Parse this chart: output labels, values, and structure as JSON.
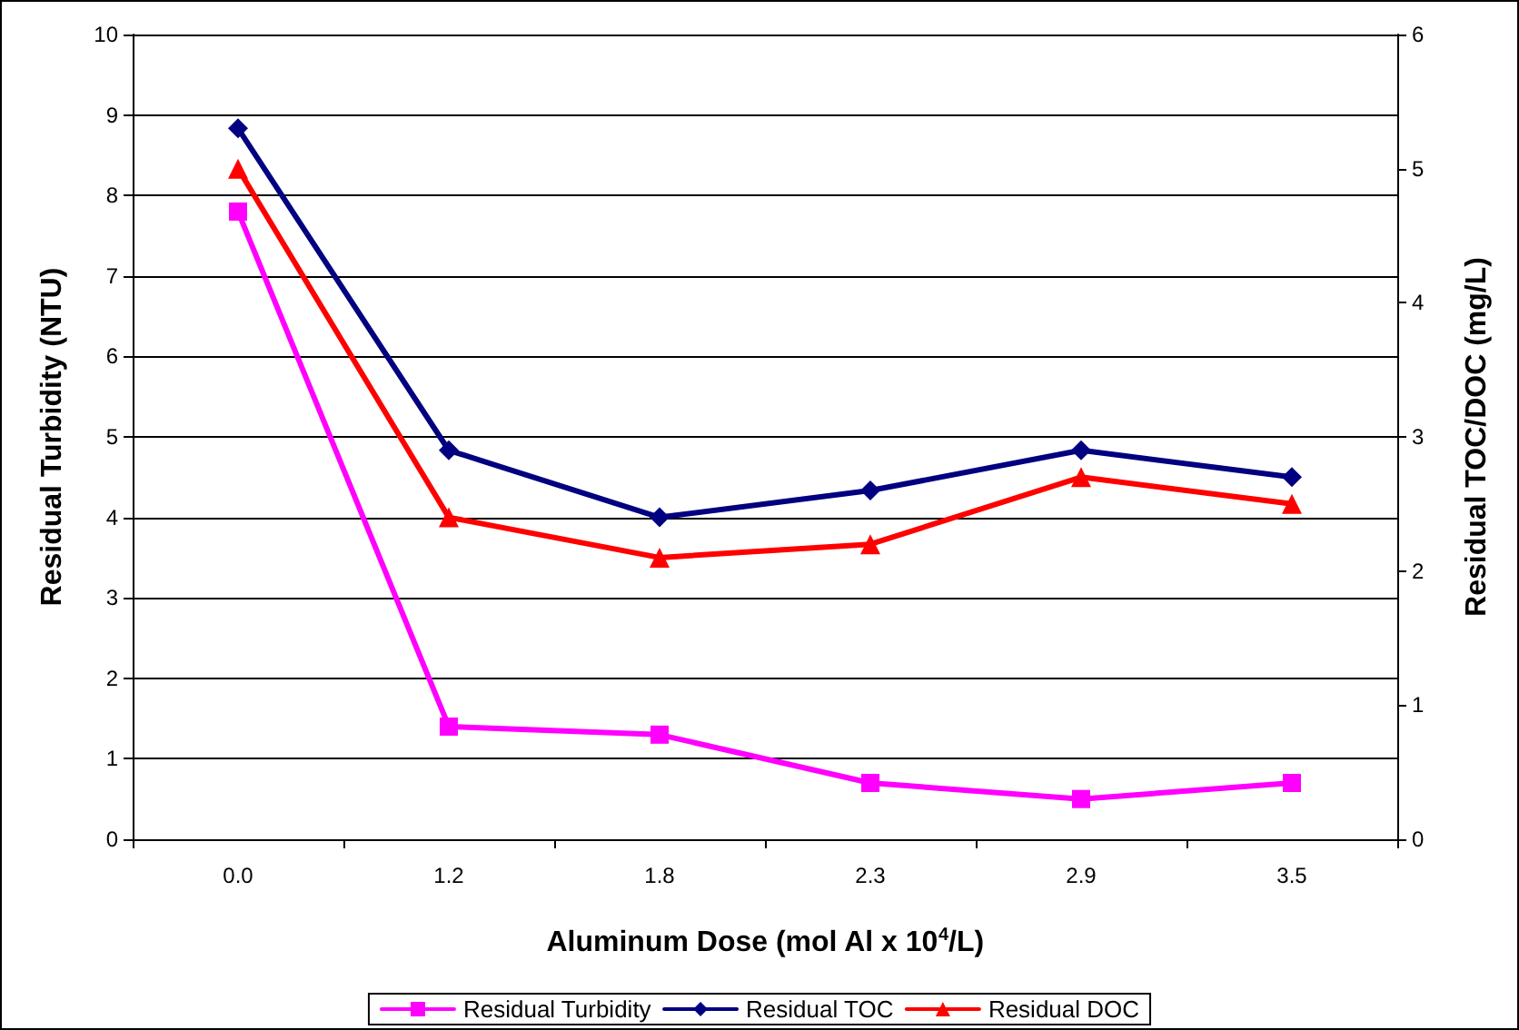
{
  "chart_data": {
    "type": "line",
    "xlabel": "Aluminum Dose (mol Al x 10$^{4}$/L)",
    "ylabel": "Residual Turbidity (NTU)",
    "y2label": "Residual TOC/DOC (mg/L)",
    "categories": [
      "0.0",
      "1.2",
      "1.8",
      "2.3",
      "2.9",
      "3.5"
    ],
    "series": [
      {
        "name": "Residual Turbidity",
        "color": "#ff00ff",
        "marker": "square",
        "values": [
          7.8,
          1.4,
          1.3,
          0.7,
          0.5,
          0.7
        ]
      },
      {
        "name": "Residual TOC",
        "color": "#000080",
        "marker": "diamond",
        "axis": "y2",
        "values": [
          5.3,
          2.9,
          2.4,
          2.6,
          2.9,
          2.7
        ]
      },
      {
        "name": "Residual DOC",
        "color": "#ff0000",
        "marker": "triangle",
        "axis": "y2",
        "values": [
          5.0,
          2.4,
          2.1,
          2.2,
          2.7,
          2.5
        ]
      }
    ],
    "ylim": [
      0,
      10
    ],
    "yticks": [
      0,
      1,
      2,
      3,
      4,
      5,
      6,
      7,
      8,
      9,
      10
    ],
    "y2lim": [
      0,
      6
    ],
    "y2ticks": [
      0,
      1,
      2,
      3,
      4,
      5,
      6
    ],
    "grid": "y",
    "legend": "bottom",
    "line_style": "solid"
  }
}
